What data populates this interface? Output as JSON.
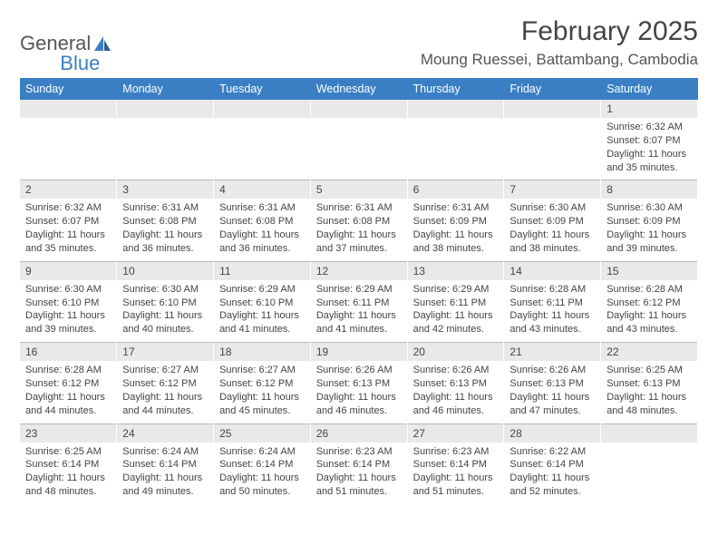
{
  "logo": {
    "text1": "General",
    "text2": "Blue"
  },
  "title": "February 2025",
  "location": "Moung Ruessei, Battambang, Cambodia",
  "colors": {
    "header_bg": "#3a7fc4",
    "header_text": "#ffffff",
    "daynum_bg": "#e9e9e9",
    "border": "#b8b8b8",
    "text": "#444444"
  },
  "day_headers": [
    "Sunday",
    "Monday",
    "Tuesday",
    "Wednesday",
    "Thursday",
    "Friday",
    "Saturday"
  ],
  "weeks": [
    [
      null,
      null,
      null,
      null,
      null,
      null,
      {
        "n": "1",
        "sr": "6:32 AM",
        "ss": "6:07 PM",
        "dl": "11 hours and 35 minutes."
      }
    ],
    [
      {
        "n": "2",
        "sr": "6:32 AM",
        "ss": "6:07 PM",
        "dl": "11 hours and 35 minutes."
      },
      {
        "n": "3",
        "sr": "6:31 AM",
        "ss": "6:08 PM",
        "dl": "11 hours and 36 minutes."
      },
      {
        "n": "4",
        "sr": "6:31 AM",
        "ss": "6:08 PM",
        "dl": "11 hours and 36 minutes."
      },
      {
        "n": "5",
        "sr": "6:31 AM",
        "ss": "6:08 PM",
        "dl": "11 hours and 37 minutes."
      },
      {
        "n": "6",
        "sr": "6:31 AM",
        "ss": "6:09 PM",
        "dl": "11 hours and 38 minutes."
      },
      {
        "n": "7",
        "sr": "6:30 AM",
        "ss": "6:09 PM",
        "dl": "11 hours and 38 minutes."
      },
      {
        "n": "8",
        "sr": "6:30 AM",
        "ss": "6:09 PM",
        "dl": "11 hours and 39 minutes."
      }
    ],
    [
      {
        "n": "9",
        "sr": "6:30 AM",
        "ss": "6:10 PM",
        "dl": "11 hours and 39 minutes."
      },
      {
        "n": "10",
        "sr": "6:30 AM",
        "ss": "6:10 PM",
        "dl": "11 hours and 40 minutes."
      },
      {
        "n": "11",
        "sr": "6:29 AM",
        "ss": "6:10 PM",
        "dl": "11 hours and 41 minutes."
      },
      {
        "n": "12",
        "sr": "6:29 AM",
        "ss": "6:11 PM",
        "dl": "11 hours and 41 minutes."
      },
      {
        "n": "13",
        "sr": "6:29 AM",
        "ss": "6:11 PM",
        "dl": "11 hours and 42 minutes."
      },
      {
        "n": "14",
        "sr": "6:28 AM",
        "ss": "6:11 PM",
        "dl": "11 hours and 43 minutes."
      },
      {
        "n": "15",
        "sr": "6:28 AM",
        "ss": "6:12 PM",
        "dl": "11 hours and 43 minutes."
      }
    ],
    [
      {
        "n": "16",
        "sr": "6:28 AM",
        "ss": "6:12 PM",
        "dl": "11 hours and 44 minutes."
      },
      {
        "n": "17",
        "sr": "6:27 AM",
        "ss": "6:12 PM",
        "dl": "11 hours and 44 minutes."
      },
      {
        "n": "18",
        "sr": "6:27 AM",
        "ss": "6:12 PM",
        "dl": "11 hours and 45 minutes."
      },
      {
        "n": "19",
        "sr": "6:26 AM",
        "ss": "6:13 PM",
        "dl": "11 hours and 46 minutes."
      },
      {
        "n": "20",
        "sr": "6:26 AM",
        "ss": "6:13 PM",
        "dl": "11 hours and 46 minutes."
      },
      {
        "n": "21",
        "sr": "6:26 AM",
        "ss": "6:13 PM",
        "dl": "11 hours and 47 minutes."
      },
      {
        "n": "22",
        "sr": "6:25 AM",
        "ss": "6:13 PM",
        "dl": "11 hours and 48 minutes."
      }
    ],
    [
      {
        "n": "23",
        "sr": "6:25 AM",
        "ss": "6:14 PM",
        "dl": "11 hours and 48 minutes."
      },
      {
        "n": "24",
        "sr": "6:24 AM",
        "ss": "6:14 PM",
        "dl": "11 hours and 49 minutes."
      },
      {
        "n": "25",
        "sr": "6:24 AM",
        "ss": "6:14 PM",
        "dl": "11 hours and 50 minutes."
      },
      {
        "n": "26",
        "sr": "6:23 AM",
        "ss": "6:14 PM",
        "dl": "11 hours and 51 minutes."
      },
      {
        "n": "27",
        "sr": "6:23 AM",
        "ss": "6:14 PM",
        "dl": "11 hours and 51 minutes."
      },
      {
        "n": "28",
        "sr": "6:22 AM",
        "ss": "6:14 PM",
        "dl": "11 hours and 52 minutes."
      },
      null
    ]
  ],
  "labels": {
    "sunrise": "Sunrise:",
    "sunset": "Sunset:",
    "daylight": "Daylight:"
  }
}
